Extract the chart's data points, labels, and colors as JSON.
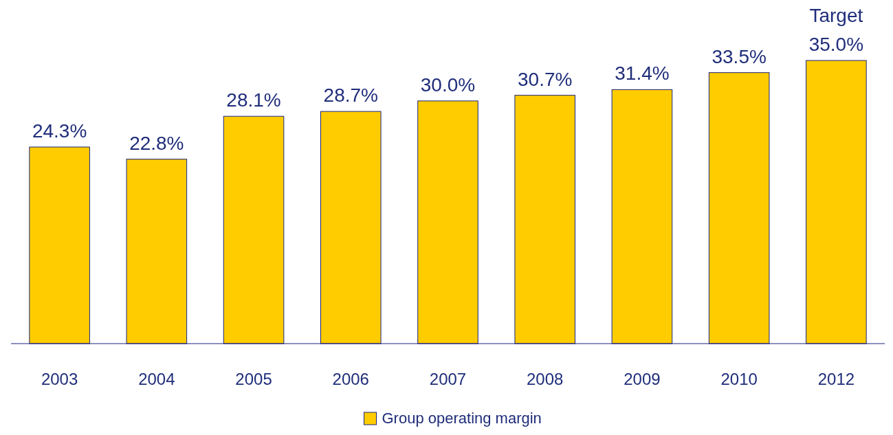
{
  "chart_data": {
    "type": "bar",
    "categories": [
      "2003",
      "2004",
      "2005",
      "2006",
      "2007",
      "2008",
      "2009",
      "2010",
      "2012"
    ],
    "series": [
      {
        "name": "Group operating margin",
        "color": "#ffcc00",
        "values": [
          24.3,
          22.8,
          28.1,
          28.7,
          30.0,
          30.7,
          31.4,
          33.5,
          35.0
        ],
        "value_labels": [
          "24.3%",
          "22.8%",
          "28.1%",
          "28.7%",
          "30.0%",
          "30.7%",
          "31.4%",
          "33.5%",
          "35.0%"
        ]
      }
    ],
    "tick_labels": "x",
    "legend": "bottom",
    "annotations": [
      "Target"
    ]
  }
}
